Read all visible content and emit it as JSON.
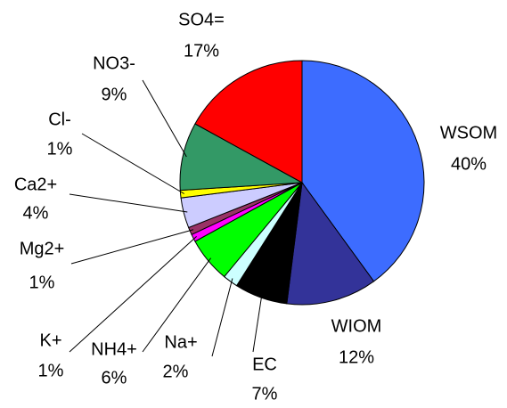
{
  "chart_data": {
    "type": "pie",
    "categories": [
      "WSOM",
      "WIOM",
      "EC",
      "Na+",
      "NH4+",
      "K+",
      "Mg2+",
      "Ca2+",
      "Cl-",
      "NO3-",
      "SO4="
    ],
    "values": [
      40,
      12,
      7,
      2,
      6,
      1,
      1,
      4,
      1,
      9,
      17
    ],
    "value_labels": [
      "40%",
      "12%",
      "7%",
      "2%",
      "6%",
      "1%",
      "1%",
      "4%",
      "1%",
      "9%",
      "17%"
    ],
    "colors": [
      "#3d6cff",
      "#333399",
      "#000000",
      "#ccffff",
      "#00ff00",
      "#ff00ff",
      "#993366",
      "#ccccff",
      "#ffff00",
      "#339966",
      "#ff0000"
    ]
  }
}
